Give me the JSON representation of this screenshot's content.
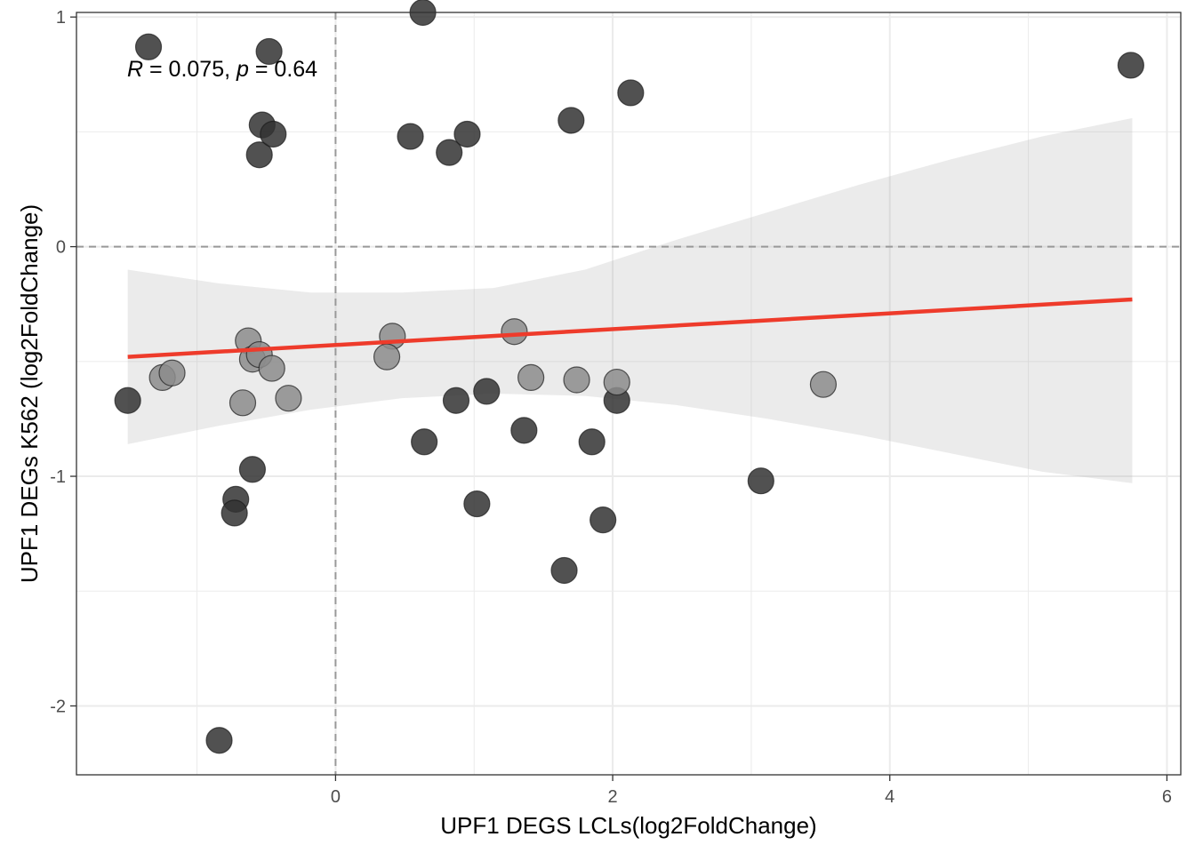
{
  "chart_data": {
    "type": "scatter",
    "xlabel": "UPF1 DEGS LCLs(log2FoldChange)",
    "ylabel": "UPF1 DEGs K562 (log2FoldChange)",
    "xlim": [
      -1.87,
      6.1
    ],
    "ylim": [
      -2.3,
      1.02
    ],
    "x_ticks": [
      0,
      2,
      4,
      6
    ],
    "y_ticks": [
      1,
      0,
      -1,
      -2
    ],
    "x_tick_labels": [
      "0",
      "2",
      "4",
      "6"
    ],
    "y_tick_labels": [
      "1",
      "0",
      "-1",
      "-2"
    ],
    "grid": true,
    "reference_lines": {
      "x": 0,
      "y": 0,
      "style": "dashed"
    },
    "annotation": {
      "r_symbol": "R",
      "r_value": " = 0.075, ",
      "p_symbol": "p",
      "p_value": " = 0.64"
    },
    "regression": {
      "x": [
        -1.5,
        5.75
      ],
      "y": [
        -0.48,
        -0.23
      ],
      "color": "#ee3b2b",
      "ci_lower": [
        -0.86,
        -0.78,
        -0.71,
        -0.66,
        -0.64,
        -0.65,
        -0.69,
        -0.75,
        -0.82,
        -0.9,
        -0.98,
        -1.03
      ],
      "ci_upper": [
        -0.1,
        -0.16,
        -0.2,
        -0.2,
        -0.18,
        -0.1,
        0.03,
        0.15,
        0.27,
        0.38,
        0.48,
        0.56
      ],
      "ci_x": [
        -1.5,
        -0.84,
        -0.18,
        0.48,
        1.14,
        1.8,
        2.46,
        3.12,
        3.78,
        4.44,
        5.1,
        5.75
      ]
    },
    "series": [
      {
        "color": "#333333",
        "x": [
          -1.35,
          -0.55,
          -0.48,
          -0.53,
          -0.45,
          0.63,
          0.54,
          0.82,
          0.95,
          1.7,
          2.13,
          5.74,
          -1.5,
          0.87,
          0.64,
          1.36,
          1.85,
          2.03,
          -0.6,
          -0.72,
          -0.73,
          1.02,
          1.93,
          1.65,
          3.07,
          -0.84,
          1.09
        ],
        "y": [
          0.87,
          0.4,
          0.85,
          0.53,
          0.49,
          1.02,
          0.48,
          0.41,
          0.49,
          0.55,
          0.67,
          0.79,
          -0.67,
          -0.67,
          -0.85,
          -0.8,
          -0.85,
          -0.67,
          -0.97,
          -1.1,
          -1.16,
          -1.12,
          -1.19,
          -1.41,
          -1.02,
          -2.15,
          -0.63
        ]
      },
      {
        "color": "#8c8c8c",
        "x": [
          -1.25,
          -1.18,
          -0.63,
          -0.6,
          -0.55,
          -0.46,
          -0.34,
          -0.67,
          0.41,
          0.37,
          1.29,
          1.41,
          1.74,
          2.03,
          3.52
        ],
        "y": [
          -0.57,
          -0.55,
          -0.41,
          -0.49,
          -0.47,
          -0.53,
          -0.66,
          -0.68,
          -0.39,
          -0.48,
          -0.37,
          -0.57,
          -0.58,
          -0.59,
          -0.6
        ]
      }
    ]
  }
}
